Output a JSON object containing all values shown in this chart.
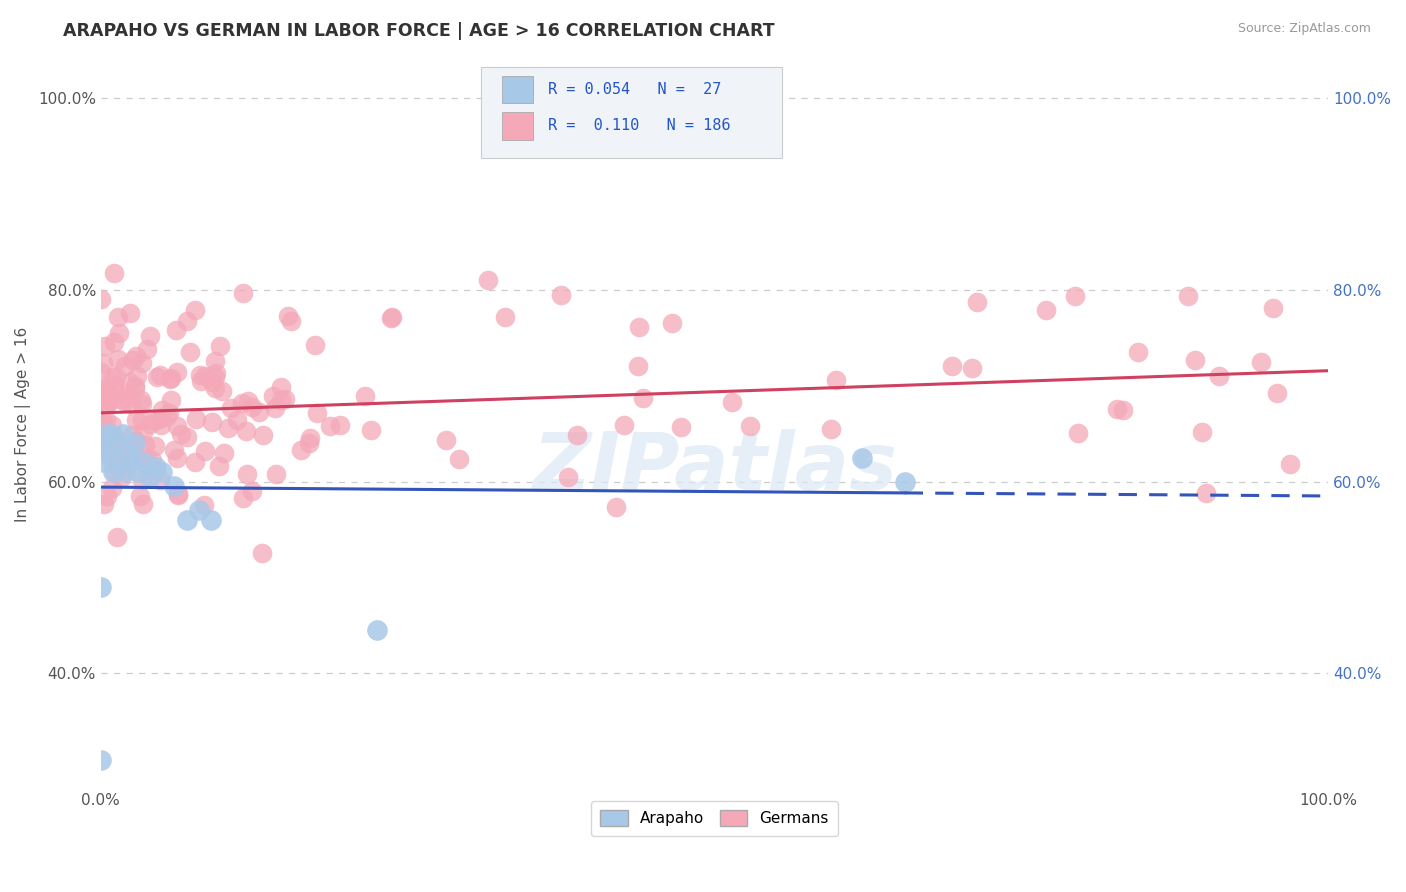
{
  "title": "ARAPAHO VS GERMAN IN LABOR FORCE | AGE > 16 CORRELATION CHART",
  "source_text": "Source: ZipAtlas.com",
  "ylabel": "In Labor Force | Age > 16",
  "xlim": [
    0.0,
    1.0
  ],
  "ylim": [
    0.28,
    1.04
  ],
  "y_ticks": [
    0.4,
    0.6,
    0.8,
    1.0
  ],
  "y_tick_labels": [
    "40.0%",
    "60.0%",
    "80.0%",
    "100.0%"
  ],
  "background_color": "#ffffff",
  "grid_color": "#cccccc",
  "arapaho_color": "#a8c8e8",
  "german_color": "#f4a8b8",
  "arapaho_line_color": "#3355bb",
  "german_line_color": "#d04060",
  "legend_R_arapaho": "0.054",
  "legend_N_arapaho": "27",
  "legend_R_german": "0.110",
  "legend_N_german": "186",
  "watermark": "ZIPatlas",
  "arapaho_seed": 77,
  "german_seed": 55
}
